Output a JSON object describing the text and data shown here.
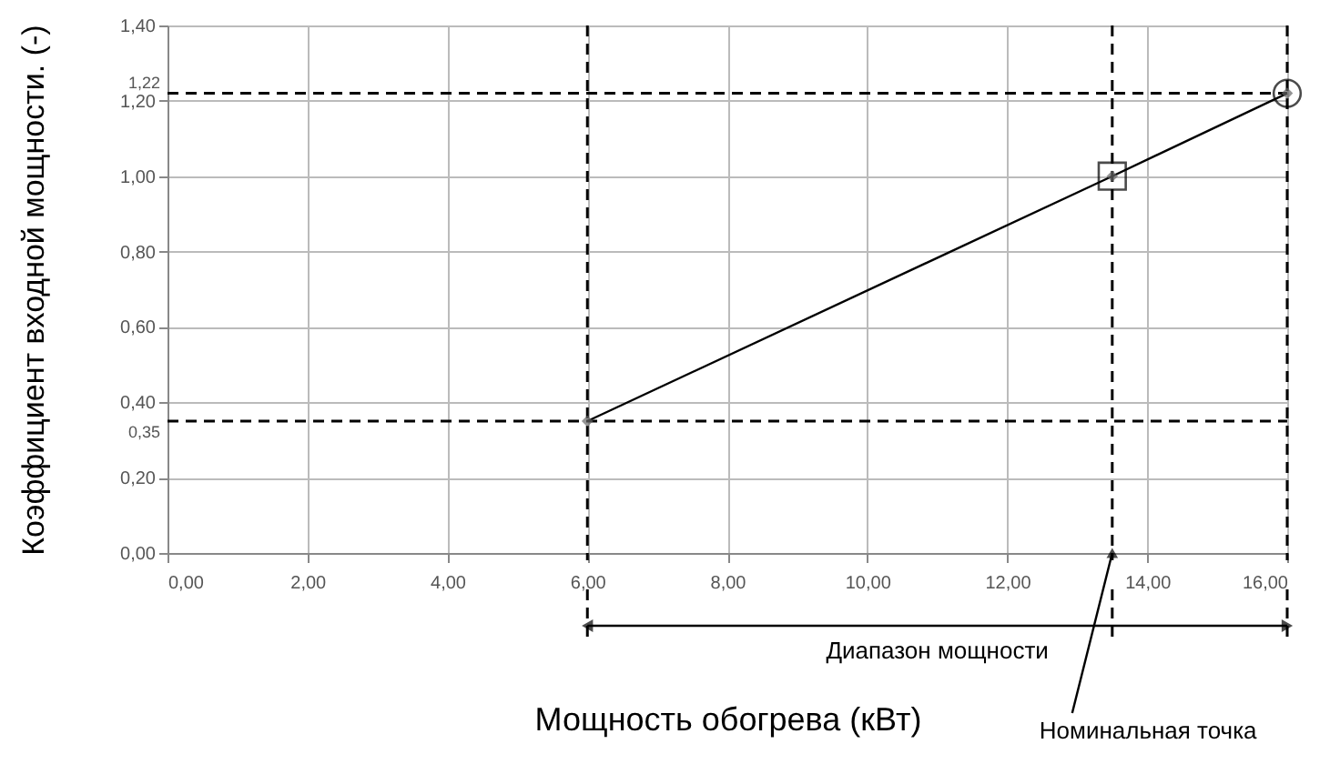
{
  "chart_data": {
    "type": "line",
    "xlabel": "Мощность обогрева (кВт)",
    "ylabel": "Коэффициент входной мощности. (-)",
    "xlim": [
      0,
      16
    ],
    "xticks": [
      {
        "value": 0,
        "label": "0,00"
      },
      {
        "value": 2,
        "label": "2,00"
      },
      {
        "value": 4,
        "label": "4,00"
      },
      {
        "value": 6,
        "label": "6,00"
      },
      {
        "value": 8,
        "label": "8,00"
      },
      {
        "value": 10,
        "label": "10,00"
      },
      {
        "value": 12,
        "label": "12,00"
      },
      {
        "value": 14,
        "label": "14,00"
      },
      {
        "value": 16,
        "label": "16,00"
      }
    ],
    "ylim": [
      0,
      1.4
    ],
    "yticks": [
      {
        "value": 0,
        "label": "0,00"
      },
      {
        "value": 0.2,
        "label": "0,20"
      },
      {
        "value": 0.4,
        "label": "0,40"
      },
      {
        "value": 0.6,
        "label": "0,60"
      },
      {
        "value": 0.8,
        "label": "0,80"
      },
      {
        "value": 1,
        "label": "1,00"
      },
      {
        "value": 1.2,
        "label": "1,20"
      },
      {
        "value": 1.4,
        "label": "1,40"
      }
    ],
    "grid": true,
    "series": [
      {
        "color": "#000000",
        "x": [
          6,
          13.5,
          16
        ],
        "values": [
          0.35,
          1.0,
          1.22
        ],
        "marker": "diamond",
        "line_style": "solid"
      },
      {
        "type": "scatter",
        "color": "#000000",
        "x": [
          13.5
        ],
        "values": [
          1.0
        ],
        "marker": "square"
      },
      {
        "type": "scatter",
        "color": "#000000",
        "x": [
          16
        ],
        "values": [
          1.22
        ],
        "marker": "circle"
      }
    ],
    "ref_lines": [
      {
        "axis": "y",
        "value": 0.35,
        "label": "0,35",
        "line_style": "dashed",
        "color": "#000000"
      },
      {
        "axis": "y",
        "value": 1.22,
        "label": "1,22",
        "line_style": "dashed",
        "color": "#000000"
      },
      {
        "axis": "x",
        "value": 6,
        "line_style": "dashed",
        "color": "#000000"
      },
      {
        "axis": "x",
        "value": 13.5,
        "line_style": "dashed",
        "color": "#000000"
      },
      {
        "axis": "x",
        "value": 16,
        "line_style": "dashed",
        "color": "#000000"
      }
    ],
    "annotations": [
      "Диапазон мощности",
      {
        "text": "Номинальная точка",
        "x": 13.5,
        "y": 0
      }
    ]
  }
}
